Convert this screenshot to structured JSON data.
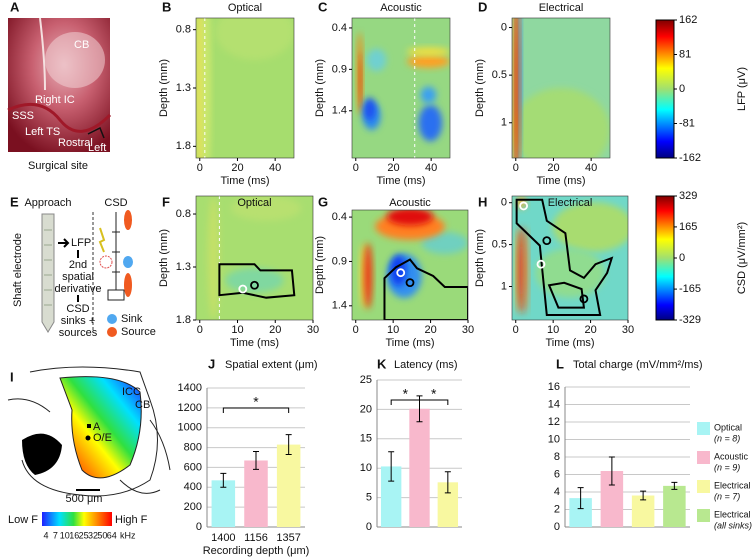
{
  "panel_a": {
    "letter": "A",
    "labels": {
      "cb": "CB",
      "right_ic": "Right IC",
      "sss": "SSS",
      "left_ts": "Left TS",
      "rostral": "Rostral",
      "left": "Left"
    },
    "caption": "Surgical site"
  },
  "panel_e": {
    "letter": "E",
    "approach": "Approach",
    "csd": "CSD",
    "electrode": "Shaft electrode",
    "lfp": "LFP",
    "derivative": [
      "2nd",
      "spatial",
      "derivative"
    ],
    "result": [
      "CSD",
      "sinks +",
      "sources"
    ],
    "sink": "Sink",
    "source": "Source"
  },
  "panel_i": {
    "letter": "I",
    "icc": "ICC",
    "cb": "CB",
    "a": "A",
    "oe": "O/E",
    "scale": "500 μm",
    "low": "Low F",
    "high": "High F",
    "khz_ticks": [
      4,
      7,
      10,
      16,
      25,
      32,
      50,
      64
    ],
    "khz": "kHz"
  },
  "colorbars": [
    {
      "label": "LFP (μV)",
      "lim": [
        -162,
        162
      ],
      "ticks": [
        162,
        81,
        0,
        -81,
        -162
      ]
    },
    {
      "label": "CSD (μV/mm²)",
      "lim": [
        -329,
        329
      ],
      "ticks": [
        329,
        165,
        0,
        -165,
        -329
      ]
    }
  ],
  "chart_data": [
    {
      "type": "heatmap",
      "letter": "B",
      "title": "Optical",
      "xlabel": "Time (ms)",
      "ylabel": "Depth (mm)",
      "xlim": [
        -2,
        50
      ],
      "xticks": [
        0,
        20,
        40
      ],
      "ylim": [
        0.7,
        1.9
      ],
      "yticks": [
        0.8,
        1.3,
        1.8
      ],
      "y_inverted": true
    },
    {
      "type": "heatmap",
      "letter": "C",
      "title": "Acoustic",
      "xlabel": "Time (ms)",
      "ylabel": "Depth (mm)",
      "xlim": [
        -2,
        50
      ],
      "xticks": [
        0,
        20,
        40
      ],
      "ylim": [
        0.28,
        1.97
      ],
      "yticks": [
        0.4,
        0.9,
        1.4
      ],
      "y_inverted": true
    },
    {
      "type": "heatmap",
      "letter": "D",
      "title": "Electrical",
      "xlabel": "Time (ms)",
      "ylabel": "Depth (mm)",
      "xlim": [
        -2,
        50
      ],
      "xticks": [
        0,
        20,
        40
      ],
      "ylim": [
        -0.1,
        1.37
      ],
      "yticks": [
        0,
        0.5,
        1
      ],
      "y_inverted": true
    },
    {
      "type": "heatmap",
      "letter": "F",
      "title": "Optical",
      "xlabel": "Time (ms)",
      "ylabel": "Depth (mm)",
      "xlim": [
        -1,
        30
      ],
      "xticks": [
        0,
        10,
        20,
        30
      ],
      "ylim": [
        0.63,
        1.8
      ],
      "yticks": [
        0.8,
        1.3,
        1.8
      ],
      "y_inverted": true
    },
    {
      "type": "heatmap",
      "letter": "G",
      "title": "Acoustic",
      "xlabel": "Time (ms)",
      "ylabel": "Depth (mm)",
      "xlim": [
        -1,
        30
      ],
      "xticks": [
        0,
        10,
        20,
        30
      ],
      "ylim": [
        0.32,
        1.56
      ],
      "yticks": [
        0.4,
        0.9,
        1.4
      ],
      "y_inverted": true
    },
    {
      "type": "heatmap",
      "letter": "H",
      "title": "Electrical",
      "xlabel": "Time (ms)",
      "ylabel": "Depth (mm)",
      "xlim": [
        -1,
        30
      ],
      "xticks": [
        0,
        10,
        20,
        30
      ],
      "ylim": [
        -0.08,
        1.4
      ],
      "yticks": [
        0,
        0.5,
        1
      ],
      "y_inverted": true
    },
    {
      "type": "bar",
      "letter": "J",
      "title": "Spatial extent (μm)",
      "xlabel": "Recording depth (μm)",
      "categories": [
        "1400",
        "1156",
        "1357"
      ],
      "values": [
        470,
        670,
        830
      ],
      "errors": [
        70,
        90,
        100
      ],
      "colors": [
        "#a8f4f4",
        "#f8b8cc",
        "#f8f8a0"
      ],
      "ylim": [
        0,
        1400
      ],
      "yticks": [
        0,
        200,
        400,
        600,
        800,
        1000,
        1200,
        1400
      ],
      "grid": true,
      "brackets": [
        {
          "label": "*",
          "span": [
            0,
            2
          ]
        }
      ]
    },
    {
      "type": "bar",
      "letter": "K",
      "title": "Latency (ms)",
      "categories": [
        null,
        null,
        null
      ],
      "values": [
        10.3,
        20.1,
        7.6
      ],
      "errors": [
        2.5,
        2.2,
        1.8
      ],
      "colors": [
        "#a8f4f4",
        "#f8b8cc",
        "#f8f8a0"
      ],
      "ylim": [
        0,
        25
      ],
      "yticks": [
        0,
        5,
        10,
        15,
        20,
        25
      ],
      "grid": true,
      "brackets": [
        {
          "label": "*",
          "span": [
            0,
            1
          ]
        },
        {
          "label": "*",
          "span": [
            1,
            2
          ]
        }
      ]
    },
    {
      "type": "bar",
      "letter": "L",
      "title": "Total charge (mV/mm²/ms)",
      "categories": [
        null,
        null,
        null,
        null
      ],
      "values": [
        3.3,
        6.4,
        3.6,
        4.7
      ],
      "errors": [
        1.2,
        1.6,
        0.5,
        0.4
      ],
      "colors": [
        "#a8f4f4",
        "#f8b8cc",
        "#f8f8a0",
        "#b8e890"
      ],
      "ylim": [
        0,
        16
      ],
      "yticks": [
        0,
        2,
        4,
        6,
        8,
        10,
        12,
        14,
        16
      ],
      "grid": true,
      "legend": [
        {
          "name": "Optical",
          "n": "(n = 8)"
        },
        {
          "name": "Acoustic",
          "n": "(n = 9)"
        },
        {
          "name": "Electrical",
          "n": "(n = 7)"
        },
        {
          "name": "Electrical",
          "n": "(all sinks)"
        }
      ]
    }
  ]
}
